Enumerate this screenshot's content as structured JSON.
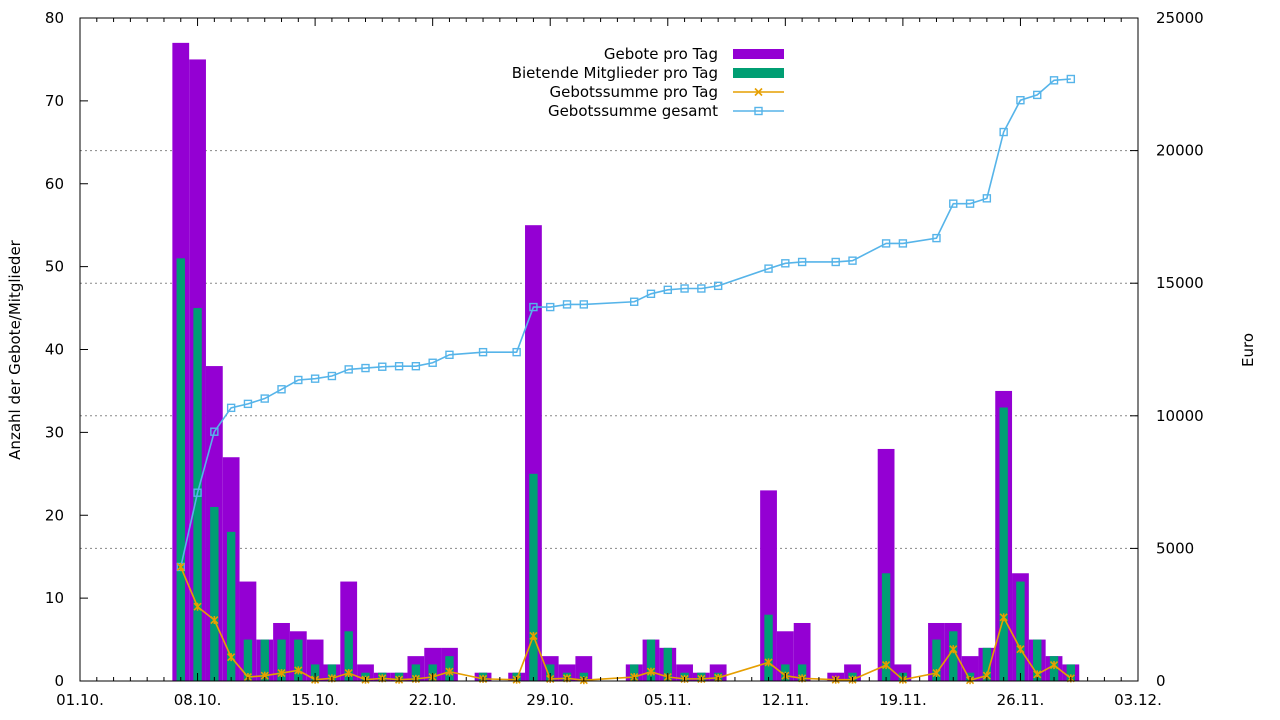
{
  "chart_data": {
    "type": "bar",
    "title": "",
    "x_ticks": [
      "01.10.",
      "08.10.",
      "15.10.",
      "22.10.",
      "29.10.",
      "05.11.",
      "12.11.",
      "19.11.",
      "26.11.",
      "03.12."
    ],
    "ylabel": "Anzahl der Gebote/Mitglieder",
    "y2label": "Euro",
    "ylim": [
      0,
      80
    ],
    "y2lim": [
      0,
      25000
    ],
    "y_ticks": [
      "0",
      "10",
      "20",
      "30",
      "40",
      "50",
      "60",
      "70",
      "80"
    ],
    "y2_ticks": [
      "0",
      "5000",
      "10000",
      "15000",
      "20000",
      "25000"
    ],
    "xlim_days": [
      0,
      63
    ],
    "legend": {
      "position": "top-center",
      "entries": [
        "Gebote pro Tag",
        "Bietende Mitglieder pro Tag",
        "Gebotssumme pro Tag",
        "Gebotssumme gesamt"
      ]
    },
    "colors": {
      "gebote": "#9400d3",
      "mitglieder": "#009e73",
      "summe_tag": "#e69f00",
      "summe_gesamt": "#56b4e9",
      "grid": "#888888"
    },
    "series": [
      {
        "name": "Gebote pro Tag",
        "axis": "y",
        "kind": "bar",
        "days": [
          6,
          7,
          8,
          9,
          10,
          11,
          12,
          13,
          14,
          15,
          16,
          17,
          18,
          19,
          20,
          21,
          22,
          23,
          24,
          25,
          26,
          27,
          28,
          29,
          30,
          31,
          32,
          33,
          34,
          35,
          36,
          37,
          38,
          39,
          40,
          41,
          42,
          43,
          44,
          45,
          46,
          47,
          48,
          49,
          50,
          51,
          52,
          53,
          54,
          55,
          56,
          57,
          58,
          59,
          60,
          61,
          62
        ],
        "values": [
          77,
          75,
          38,
          27,
          12,
          5,
          7,
          6,
          5,
          2,
          12,
          2,
          1,
          1,
          3,
          4,
          4,
          0,
          1,
          0,
          1,
          55,
          3,
          2,
          3,
          0,
          0,
          2,
          5,
          4,
          2,
          1,
          2,
          0,
          0,
          23,
          6,
          7,
          0,
          1,
          2,
          0,
          28,
          2,
          0,
          7,
          7,
          3,
          4,
          35,
          13,
          5,
          3,
          2,
          0,
          0,
          0
        ]
      },
      {
        "name": "Bietende Mitglieder pro Tag",
        "axis": "y",
        "kind": "bar",
        "days": [
          6,
          7,
          8,
          9,
          10,
          11,
          12,
          13,
          14,
          15,
          16,
          17,
          18,
          19,
          20,
          21,
          22,
          23,
          24,
          25,
          26,
          27,
          28,
          29,
          30,
          31,
          32,
          33,
          34,
          35,
          36,
          37,
          38,
          39,
          40,
          41,
          42,
          43,
          44,
          45,
          46,
          47,
          48,
          49,
          50,
          51,
          52,
          53,
          54,
          55,
          56,
          57,
          58,
          59,
          60,
          61,
          62
        ],
        "values": [
          51,
          45,
          21,
          18,
          5,
          5,
          5,
          5,
          2,
          2,
          6,
          1,
          1,
          1,
          2,
          2,
          3,
          0,
          1,
          0,
          1,
          25,
          2,
          1,
          1,
          0,
          0,
          2,
          5,
          4,
          1,
          1,
          1,
          0,
          0,
          8,
          2,
          2,
          0,
          0,
          1,
          0,
          13,
          1,
          0,
          5,
          6,
          1,
          4,
          33,
          12,
          5,
          3,
          2,
          0,
          0,
          0
        ]
      },
      {
        "name": "Gebotssumme pro Tag",
        "axis": "y2",
        "kind": "line",
        "x": [
          6,
          7,
          8,
          9,
          10,
          11,
          12,
          13,
          14,
          15,
          16,
          17,
          18,
          19,
          20,
          21,
          22,
          24,
          26,
          27,
          28,
          29,
          30,
          33,
          34,
          35,
          36,
          37,
          38,
          41,
          42,
          43,
          45,
          46,
          48,
          49,
          51,
          52,
          53,
          54,
          55,
          56,
          57,
          58,
          59
        ],
        "y": [
          4300,
          2800,
          2300,
          900,
          150,
          200,
          300,
          400,
          50,
          100,
          300,
          50,
          100,
          50,
          80,
          150,
          350,
          80,
          50,
          1700,
          80,
          100,
          30,
          150,
          350,
          150,
          80,
          80,
          120,
          700,
          200,
          100,
          50,
          50,
          600,
          50,
          300,
          1200,
          30,
          200,
          2400,
          1200,
          250,
          600,
          100
        ]
      },
      {
        "name": "Gebotssumme gesamt",
        "axis": "y2",
        "kind": "line",
        "x": [
          6,
          7,
          8,
          9,
          10,
          11,
          12,
          13,
          14,
          15,
          16,
          17,
          18,
          19,
          20,
          21,
          22,
          24,
          26,
          27,
          28,
          29,
          30,
          33,
          34,
          35,
          36,
          37,
          38,
          41,
          42,
          43,
          45,
          46,
          48,
          49,
          51,
          52,
          53,
          54,
          55,
          56,
          57,
          58,
          59
        ],
        "y": [
          4300,
          7100,
          9400,
          10300,
          10450,
          10650,
          11000,
          11350,
          11400,
          11500,
          11750,
          11800,
          11850,
          11870,
          11870,
          12000,
          12300,
          12400,
          12400,
          14100,
          14100,
          14200,
          14200,
          14300,
          14600,
          14750,
          14800,
          14800,
          14900,
          15550,
          15750,
          15800,
          15800,
          15850,
          16500,
          16500,
          16700,
          18000,
          18000,
          18200,
          20700,
          21900,
          22100,
          22650,
          22700
        ]
      }
    ]
  }
}
